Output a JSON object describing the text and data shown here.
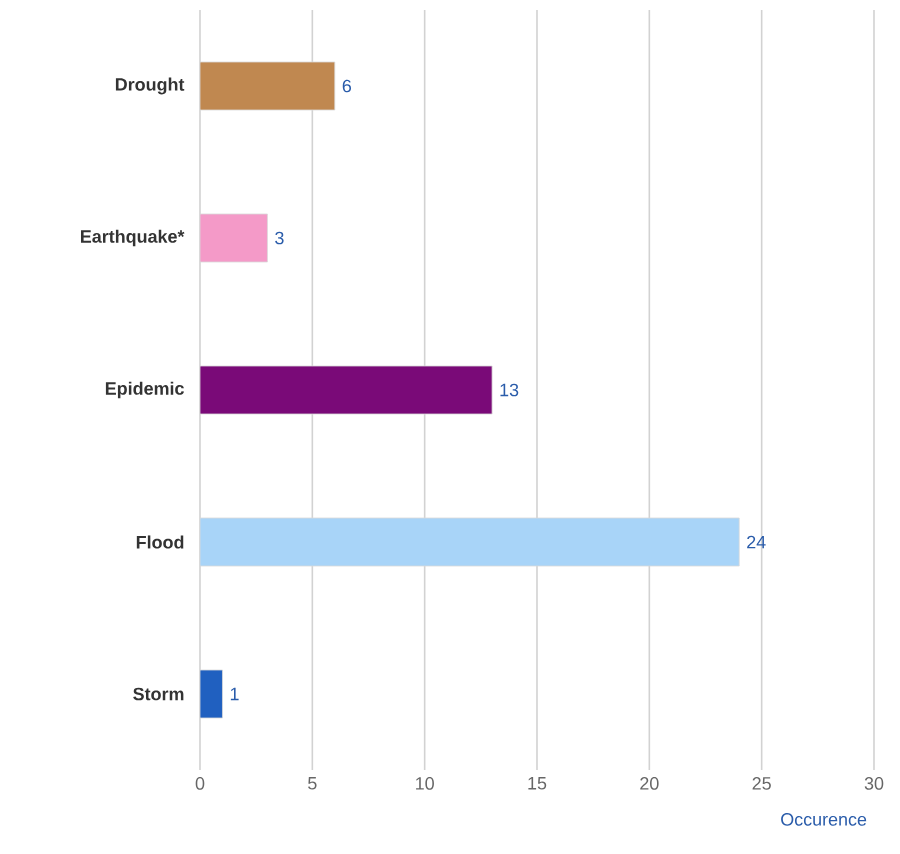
{
  "chart_data": {
    "type": "bar",
    "orientation": "horizontal",
    "categories": [
      "Drought",
      "Earthquake*",
      "Epidemic",
      "Flood",
      "Storm"
    ],
    "values": [
      6,
      3,
      13,
      24,
      1
    ],
    "colors": [
      "#c08850",
      "#f49ac8",
      "#7a0a78",
      "#a8d4f8",
      "#2060c0"
    ],
    "xlim": [
      0,
      30
    ],
    "xticks": [
      0,
      5,
      10,
      15,
      20,
      25,
      30
    ],
    "xlabel": "Occurence",
    "grid": "x",
    "data_labels": true
  }
}
